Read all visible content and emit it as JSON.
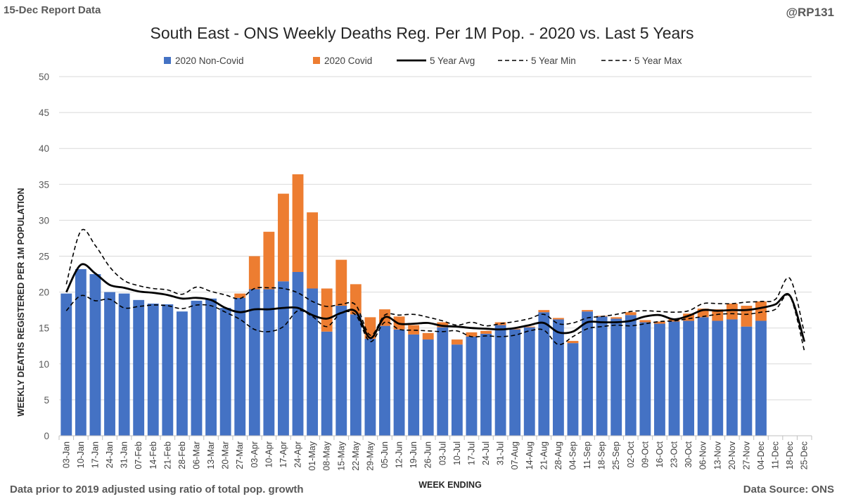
{
  "header": {
    "report_date": "15-Dec Report Data",
    "handle": "@RP131"
  },
  "footer": {
    "note": "Data prior to 2019 adjusted using ratio of total pop. growth",
    "source": "Data Source: ONS"
  },
  "colors": {
    "non_covid": "#4472C4",
    "covid": "#ED7D31",
    "line": "#000000",
    "grid": "#D9D9D9"
  },
  "chart_data": {
    "type": "bar",
    "stacked": true,
    "title": "South East - ONS Weekly Deaths Reg. Per 1M Pop. - 2020 vs. Last 5 Years",
    "xlabel": "WEEK ENDING",
    "ylabel": "WEEKLY DEATHS REGISTERED PER 1M POPULATION",
    "ylim": [
      0,
      50
    ],
    "yticks": [
      0,
      5,
      10,
      15,
      20,
      25,
      30,
      35,
      40,
      45,
      50
    ],
    "grid": true,
    "legend_position": "top",
    "categories": [
      "03-Jan",
      "10-Jan",
      "17-Jan",
      "24-Jan",
      "31-Jan",
      "07-Feb",
      "14-Feb",
      "21-Feb",
      "28-Feb",
      "06-Mar",
      "13-Mar",
      "20-Mar",
      "27-Mar",
      "03-Apr",
      "10-Apr",
      "17-Apr",
      "24-Apr",
      "01-May",
      "08-May",
      "15-May",
      "22-May",
      "29-May",
      "05-Jun",
      "12-Jun",
      "19-Jun",
      "26-Jun",
      "03-Jul",
      "10-Jul",
      "17-Jul",
      "24-Jul",
      "31-Jul",
      "07-Aug",
      "14-Aug",
      "21-Aug",
      "28-Aug",
      "04-Sep",
      "11-Sep",
      "18-Sep",
      "25-Sep",
      "02-Oct",
      "09-Oct",
      "16-Oct",
      "23-Oct",
      "30-Oct",
      "06-Nov",
      "13-Nov",
      "20-Nov",
      "27-Nov",
      "04-Dec",
      "11-Dec",
      "18-Dec",
      "25-Dec"
    ],
    "bar_series": [
      {
        "name": "2020 Non-Covid",
        "color": "#4472C4",
        "values": [
          19.8,
          23.2,
          22.5,
          20.0,
          19.8,
          18.9,
          18.4,
          18.3,
          17.3,
          18.8,
          19.1,
          17.8,
          19.2,
          20.4,
          20.4,
          21.5,
          22.8,
          20.5,
          14.5,
          18.1,
          16.9,
          13.5,
          15.3,
          14.8,
          14.1,
          13.4,
          15.1,
          12.7,
          13.8,
          14.2,
          15.4,
          14.8,
          15.1,
          17.2,
          16.2,
          12.9,
          17.3,
          16.6,
          16.3,
          16.8,
          15.8,
          15.6,
          15.9,
          16.0,
          16.5,
          16.0,
          16.2,
          15.2,
          16.0,
          null,
          null,
          null
        ]
      },
      {
        "name": "2020 Covid",
        "color": "#ED7D31",
        "values": [
          0,
          0,
          0,
          0,
          0,
          0,
          0,
          0,
          0,
          0,
          0,
          0,
          0.6,
          4.6,
          8.0,
          12.2,
          13.6,
          10.6,
          6.0,
          6.4,
          4.2,
          3.0,
          2.3,
          1.8,
          1.3,
          0.9,
          0.7,
          0.7,
          0.6,
          0.4,
          0.4,
          0.1,
          0.1,
          0.3,
          0.2,
          0.3,
          0.2,
          0.1,
          0.2,
          0.4,
          0.3,
          0.3,
          0.4,
          1.0,
          1.2,
          1.6,
          2.2,
          2.9,
          2.7,
          null,
          null,
          null
        ]
      }
    ],
    "line_series": [
      {
        "name": "5 Year Avg",
        "style": "solid",
        "values": [
          20.0,
          23.8,
          22.6,
          21.0,
          20.6,
          20.1,
          19.9,
          19.6,
          19.1,
          19.2,
          18.9,
          17.8,
          17.2,
          17.6,
          17.6,
          17.8,
          17.8,
          16.8,
          16.3,
          17.1,
          17.3,
          13.6,
          16.5,
          15.6,
          15.6,
          15.7,
          15.3,
          15.2,
          15.0,
          14.9,
          14.8,
          15.0,
          15.4,
          15.7,
          14.4,
          14.5,
          15.8,
          15.8,
          15.8,
          16.0,
          16.6,
          16.8,
          16.2,
          16.7,
          17.5,
          17.4,
          17.5,
          17.5,
          17.8,
          18.3,
          19.5,
          13.1
        ]
      },
      {
        "name": "5 Year Min",
        "style": "dashed",
        "values": [
          17.4,
          19.5,
          18.8,
          19.0,
          17.8,
          18.0,
          18.2,
          18.1,
          17.7,
          18.2,
          18.1,
          17.2,
          16.2,
          14.8,
          14.5,
          15.2,
          17.4,
          16.6,
          15.2,
          17.1,
          16.8,
          13.1,
          15.8,
          14.8,
          14.7,
          14.6,
          14.5,
          14.6,
          13.8,
          13.9,
          13.8,
          14.0,
          14.6,
          14.7,
          12.7,
          13.8,
          14.9,
          15.2,
          15.4,
          15.3,
          15.6,
          15.9,
          16.0,
          16.3,
          16.6,
          16.9,
          17.0,
          16.9,
          17.2,
          17.6,
          19.4,
          11.8
        ]
      },
      {
        "name": "5 Year Max",
        "style": "dashed",
        "values": [
          21.1,
          28.5,
          26.5,
          23.5,
          21.6,
          20.9,
          20.5,
          20.3,
          19.7,
          20.7,
          20.1,
          19.6,
          19.1,
          20.5,
          20.6,
          20.5,
          19.9,
          18.7,
          18.0,
          18.3,
          18.2,
          14.0,
          16.8,
          16.8,
          16.9,
          16.5,
          16.0,
          15.4,
          15.8,
          15.3,
          15.6,
          15.9,
          16.3,
          16.9,
          15.6,
          15.7,
          16.4,
          16.6,
          16.9,
          17.3,
          17.4,
          17.3,
          17.2,
          17.4,
          18.4,
          18.4,
          18.4,
          18.6,
          18.7,
          19.0,
          21.9,
          14.3
        ]
      }
    ],
    "legend": [
      {
        "label": "2020 Non-Covid",
        "kind": "bar",
        "color": "#4472C4"
      },
      {
        "label": "2020 Covid",
        "kind": "bar",
        "color": "#ED7D31"
      },
      {
        "label": "5 Year Avg",
        "kind": "solid"
      },
      {
        "label": "5 Year Min",
        "kind": "dashed"
      },
      {
        "label": "5 Year Max",
        "kind": "dashed"
      }
    ]
  }
}
